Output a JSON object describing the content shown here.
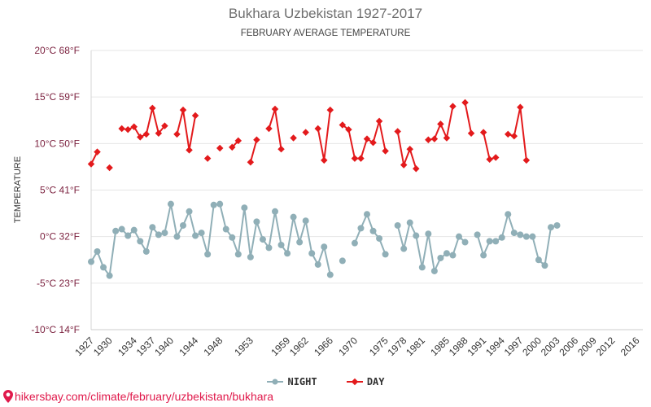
{
  "header": {
    "title": "Bukhara Uzbekistan 1927-2017",
    "subtitle": "FEBRUARY AVERAGE TEMPERATURE"
  },
  "footer": {
    "url": "hikersbay.com/climate/february/uzbekistan/bukhara",
    "pin_icon": "map-pin-icon"
  },
  "colors": {
    "night": "#90afb7",
    "day": "#e31a1c",
    "grid": "#e6e6e6",
    "ytick": "#7a1f3d",
    "footer": "#e0194b"
  },
  "chart_data": {
    "type": "line",
    "title": "Bukhara Uzbekistan 1927-2017",
    "subtitle": "FEBRUARY AVERAGE TEMPERATURE",
    "ylabel": "TEMPERATURE",
    "ylim": [
      -10,
      20
    ],
    "xlim": [
      1927,
      2017
    ],
    "yticks": [
      {
        "value": 20,
        "label": "20°C 68°F"
      },
      {
        "value": 15,
        "label": "15°C 59°F"
      },
      {
        "value": 10,
        "label": "10°C 50°F"
      },
      {
        "value": 5,
        "label": "5°C 41°F"
      },
      {
        "value": 0,
        "label": "0°C 32°F"
      },
      {
        "value": -5,
        "label": "-5°C 23°F"
      },
      {
        "value": -10,
        "label": "-10°C 14°F"
      }
    ],
    "xticks": [
      1927,
      1930,
      1934,
      1937,
      1940,
      1944,
      1948,
      1953,
      1959,
      1962,
      1966,
      1970,
      1975,
      1978,
      1981,
      1985,
      1988,
      1991,
      1994,
      1997,
      2000,
      2003,
      2006,
      2009,
      2012,
      2016
    ],
    "legend": [
      "NIGHT",
      "DAY"
    ],
    "grid": true,
    "legend_position": "bottom",
    "series": [
      {
        "name": "NIGHT",
        "color": "#90afb7",
        "marker": "circle",
        "points": [
          [
            1927,
            -2.7
          ],
          [
            1928,
            -1.6
          ],
          [
            1929,
            -3.3
          ],
          [
            1930,
            -4.2
          ],
          [
            1931,
            0.6
          ],
          [
            1932,
            0.8
          ],
          [
            1933,
            0.1
          ],
          [
            1934,
            0.7
          ],
          [
            1935,
            -0.5
          ],
          [
            1936,
            -1.6
          ],
          [
            1937,
            1.0
          ],
          [
            1938,
            0.2
          ],
          [
            1939,
            0.4
          ],
          [
            1940,
            3.5
          ],
          [
            1941,
            0.0
          ],
          [
            1942,
            1.2
          ],
          [
            1943,
            2.7
          ],
          [
            1944,
            0.1
          ],
          [
            1945,
            0.4
          ],
          [
            1946,
            -1.9
          ],
          [
            1947,
            3.4
          ],
          [
            1948,
            3.5
          ],
          [
            1949,
            0.8
          ],
          [
            1950,
            -0.1
          ],
          [
            1951,
            -1.9
          ],
          [
            1952,
            3.1
          ],
          [
            1953,
            -2.2
          ],
          [
            1954,
            1.6
          ],
          [
            1955,
            -0.3
          ],
          [
            1956,
            -1.2
          ],
          [
            1957,
            2.7
          ],
          [
            1958,
            -0.9
          ],
          [
            1959,
            -1.8
          ],
          [
            1960,
            2.1
          ],
          [
            1961,
            -0.6
          ],
          [
            1962,
            1.7
          ],
          [
            1963,
            -1.8
          ],
          [
            1964,
            -3.0
          ],
          [
            1965,
            -1.1
          ],
          [
            1966,
            -4.1
          ],
          null,
          [
            1968,
            -2.6
          ],
          null,
          [
            1970,
            -0.7
          ],
          [
            1971,
            0.9
          ],
          [
            1972,
            2.4
          ],
          [
            1973,
            0.6
          ],
          [
            1974,
            -0.2
          ],
          [
            1975,
            -1.9
          ],
          null,
          [
            1977,
            1.2
          ],
          [
            1978,
            -1.3
          ],
          [
            1979,
            1.5
          ],
          [
            1980,
            0.1
          ],
          [
            1981,
            -3.3
          ],
          [
            1982,
            0.3
          ],
          [
            1983,
            -3.7
          ],
          [
            1984,
            -2.3
          ],
          [
            1985,
            -1.8
          ],
          [
            1986,
            -2.0
          ],
          [
            1987,
            0.0
          ],
          [
            1988,
            -0.6
          ],
          null,
          [
            1990,
            0.2
          ],
          [
            1991,
            -2.0
          ],
          [
            1992,
            -0.5
          ],
          [
            1993,
            -0.5
          ],
          [
            1994,
            -0.1
          ],
          [
            1995,
            2.4
          ],
          [
            1996,
            0.4
          ],
          [
            1997,
            0.2
          ],
          [
            1998,
            0.0
          ],
          [
            1999,
            0.0
          ],
          [
            2000,
            -2.5
          ],
          [
            2001,
            -3.1
          ],
          [
            2002,
            1.0
          ],
          [
            2003,
            1.2
          ]
        ]
      },
      {
        "name": "DAY",
        "color": "#e31a1c",
        "marker": "diamond",
        "points": [
          [
            1927,
            7.8
          ],
          [
            1928,
            9.1
          ],
          null,
          [
            1930,
            7.4
          ],
          null,
          [
            1932,
            11.6
          ],
          [
            1933,
            11.5
          ],
          [
            1934,
            11.8
          ],
          [
            1935,
            10.7
          ],
          [
            1936,
            11.0
          ],
          [
            1937,
            13.8
          ],
          [
            1938,
            11.1
          ],
          [
            1939,
            11.9
          ],
          null,
          [
            1941,
            11.0
          ],
          [
            1942,
            13.6
          ],
          [
            1943,
            9.3
          ],
          [
            1944,
            13.0
          ],
          null,
          [
            1946,
            8.4
          ],
          null,
          [
            1948,
            9.5
          ],
          null,
          [
            1950,
            9.6
          ],
          [
            1951,
            10.3
          ],
          null,
          [
            1953,
            8.0
          ],
          [
            1954,
            10.4
          ],
          null,
          [
            1956,
            11.6
          ],
          [
            1957,
            13.7
          ],
          [
            1958,
            9.4
          ],
          null,
          [
            1960,
            10.6
          ],
          null,
          [
            1962,
            11.2
          ],
          null,
          [
            1964,
            11.6
          ],
          [
            1965,
            8.2
          ],
          [
            1966,
            13.6
          ],
          null,
          [
            1968,
            12.0
          ],
          [
            1969,
            11.5
          ],
          [
            1970,
            8.4
          ],
          [
            1971,
            8.4
          ],
          [
            1972,
            10.5
          ],
          [
            1973,
            10.1
          ],
          [
            1974,
            12.4
          ],
          [
            1975,
            9.2
          ],
          null,
          [
            1977,
            11.3
          ],
          [
            1978,
            7.7
          ],
          [
            1979,
            9.4
          ],
          [
            1980,
            7.3
          ],
          null,
          [
            1982,
            10.4
          ],
          [
            1983,
            10.5
          ],
          [
            1984,
            12.1
          ],
          [
            1985,
            10.6
          ],
          [
            1986,
            14.0
          ],
          null,
          [
            1988,
            14.4
          ],
          [
            1989,
            11.1
          ],
          null,
          [
            1991,
            11.2
          ],
          [
            1992,
            8.3
          ],
          [
            1993,
            8.5
          ],
          null,
          [
            1995,
            11.0
          ],
          [
            1996,
            10.8
          ],
          [
            1997,
            13.9
          ],
          [
            1998,
            8.2
          ]
        ]
      }
    ]
  }
}
